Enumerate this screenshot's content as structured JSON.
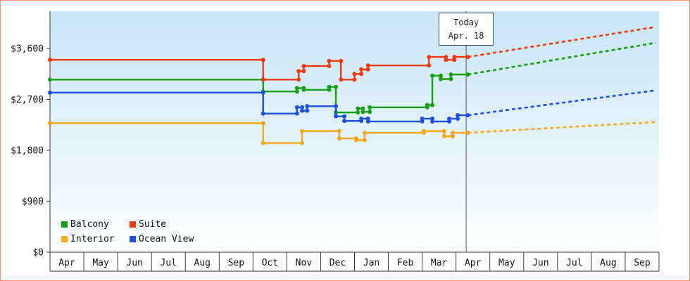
{
  "frame": {
    "border_color": "#ff8f6e",
    "background": "#ffffff"
  },
  "chart_data": {
    "type": "line",
    "title": "",
    "x_axis": {
      "months": [
        "Apr",
        "May",
        "Jun",
        "Jul",
        "Aug",
        "Sep",
        "Oct",
        "Nov",
        "Dec",
        "Jan",
        "Feb",
        "Mar",
        "Apr",
        "May",
        "Jun",
        "Jul",
        "Aug",
        "Sep"
      ]
    },
    "y_axis": {
      "range": [
        0,
        4258
      ],
      "ticks": [
        {
          "value": 0,
          "label": "$0"
        },
        {
          "value": 900,
          "label": "$900"
        },
        {
          "value": 1800,
          "label": "$1,800"
        },
        {
          "value": 2700,
          "label": "$2,700"
        },
        {
          "value": 3600,
          "label": "$3,600"
        }
      ]
    },
    "today": {
      "line1": "Today",
      "line2": "Apr. 18",
      "position": 12.3
    },
    "legend_position": "bottom-left",
    "series": [
      {
        "name": "Balcony",
        "color": "#16a016",
        "history": [
          [
            0,
            3050
          ],
          [
            6.3,
            3050
          ],
          [
            6.3,
            2840
          ],
          [
            7.3,
            2840
          ],
          [
            7.3,
            2900
          ],
          [
            7.5,
            2900
          ],
          [
            7.5,
            2870
          ],
          [
            8.25,
            2870
          ],
          [
            8.25,
            2920
          ],
          [
            8.45,
            2920
          ],
          [
            8.45,
            2470
          ],
          [
            9.1,
            2470
          ],
          [
            9.1,
            2540
          ],
          [
            9.25,
            2540
          ],
          [
            9.25,
            2480
          ],
          [
            9.45,
            2480
          ],
          [
            9.45,
            2560
          ],
          [
            11.15,
            2560
          ],
          [
            11.15,
            2600
          ],
          [
            11.3,
            2600
          ],
          [
            11.3,
            3120
          ],
          [
            11.55,
            3120
          ],
          [
            11.55,
            3060
          ],
          [
            11.85,
            3060
          ],
          [
            11.85,
            3140
          ],
          [
            12.35,
            3140
          ]
        ],
        "forecast": [
          [
            12.35,
            3140
          ],
          [
            17.9,
            3700
          ]
        ]
      },
      {
        "name": "Suite",
        "color": "#ee3912",
        "history": [
          [
            0,
            3400
          ],
          [
            6.3,
            3400
          ],
          [
            6.3,
            3050
          ],
          [
            7.35,
            3050
          ],
          [
            7.35,
            3200
          ],
          [
            7.5,
            3200
          ],
          [
            7.5,
            3290
          ],
          [
            8.25,
            3290
          ],
          [
            8.25,
            3380
          ],
          [
            8.6,
            3380
          ],
          [
            8.6,
            3050
          ],
          [
            9.0,
            3050
          ],
          [
            9.0,
            3150
          ],
          [
            9.2,
            3150
          ],
          [
            9.2,
            3230
          ],
          [
            9.4,
            3230
          ],
          [
            9.4,
            3300
          ],
          [
            11.2,
            3300
          ],
          [
            11.2,
            3450
          ],
          [
            11.7,
            3450
          ],
          [
            11.7,
            3400
          ],
          [
            11.95,
            3400
          ],
          [
            11.95,
            3450
          ],
          [
            12.35,
            3450
          ]
        ],
        "forecast": [
          [
            12.35,
            3450
          ],
          [
            17.9,
            3980
          ]
        ]
      },
      {
        "name": "Interior",
        "color": "#f2a81d",
        "history": [
          [
            0,
            2280
          ],
          [
            6.3,
            2280
          ],
          [
            6.3,
            1930
          ],
          [
            7.45,
            1930
          ],
          [
            7.45,
            2140
          ],
          [
            8.55,
            2140
          ],
          [
            8.55,
            2010
          ],
          [
            9.05,
            2010
          ],
          [
            9.05,
            1980
          ],
          [
            9.3,
            1980
          ],
          [
            9.3,
            2110
          ],
          [
            11.05,
            2110
          ],
          [
            11.05,
            2140
          ],
          [
            11.65,
            2140
          ],
          [
            11.65,
            2050
          ],
          [
            11.9,
            2050
          ],
          [
            11.9,
            2110
          ],
          [
            12.35,
            2110
          ]
        ],
        "forecast": [
          [
            12.35,
            2110
          ],
          [
            17.9,
            2300
          ]
        ]
      },
      {
        "name": "Ocean View",
        "color": "#2050e0",
        "history": [
          [
            0,
            2820
          ],
          [
            6.3,
            2820
          ],
          [
            6.3,
            2450
          ],
          [
            7.3,
            2450
          ],
          [
            7.3,
            2560
          ],
          [
            7.45,
            2560
          ],
          [
            7.45,
            2500
          ],
          [
            7.6,
            2500
          ],
          [
            7.6,
            2580
          ],
          [
            8.45,
            2580
          ],
          [
            8.45,
            2400
          ],
          [
            8.7,
            2400
          ],
          [
            8.7,
            2320
          ],
          [
            9.2,
            2320
          ],
          [
            9.2,
            2360
          ],
          [
            9.4,
            2360
          ],
          [
            9.4,
            2310
          ],
          [
            11.0,
            2310
          ],
          [
            11.0,
            2360
          ],
          [
            11.3,
            2360
          ],
          [
            11.3,
            2310
          ],
          [
            11.8,
            2310
          ],
          [
            11.8,
            2360
          ],
          [
            12.05,
            2360
          ],
          [
            12.05,
            2420
          ],
          [
            12.35,
            2420
          ]
        ],
        "forecast": [
          [
            12.35,
            2420
          ],
          [
            17.9,
            2860
          ]
        ]
      }
    ],
    "styles": {
      "plot_gradient_top": "#c9e6f6",
      "plot_gradient_bottom": "#fdfeff",
      "axis_color": "#3a3a3a",
      "today_line_color": "#4a5560",
      "label_color": "#111111"
    }
  }
}
